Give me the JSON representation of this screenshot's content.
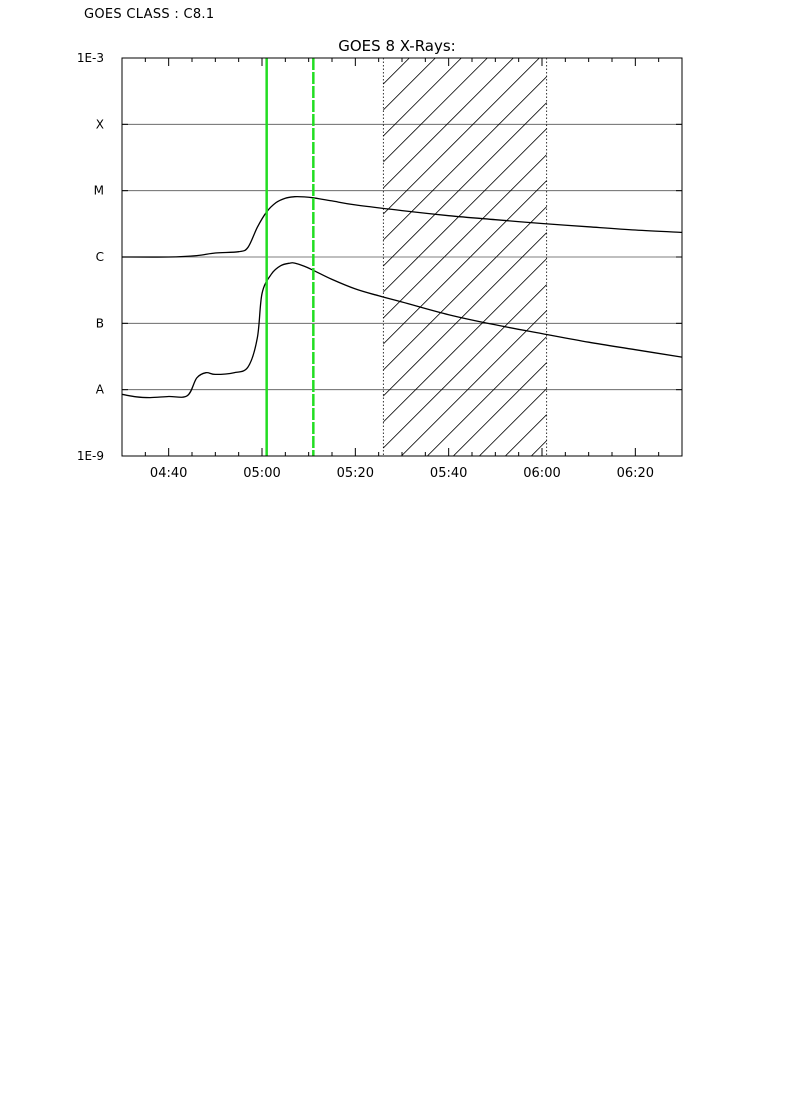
{
  "header": {
    "goes_class": "GOES CLASS : C8.1"
  },
  "chart_data": {
    "type": "line",
    "title": "GOES 8 X-Rays:",
    "xlabel": "",
    "ylabel": "",
    "y_scale": "log",
    "ylim": [
      "1E-9",
      "1E-3"
    ],
    "y_tick_labels": [
      "1E-3",
      "X",
      "M",
      "C",
      "B",
      "A",
      "1E-9"
    ],
    "x_tick_labels": [
      "04:40",
      "05:00",
      "05:20",
      "05:40",
      "06:00",
      "06:20"
    ],
    "xlim": [
      "04:30",
      "06:30"
    ],
    "grid": "horizontal at each decade",
    "markers": [
      {
        "time": "05:01",
        "style": "solid",
        "color": "#22dd22"
      },
      {
        "time": "05:11",
        "style": "dashed",
        "color": "#22dd22"
      }
    ],
    "shaded_interval": {
      "start": "05:26",
      "end": "06:01",
      "pattern": "diagonal hatch"
    },
    "series": [
      {
        "x": [
          "04:30",
          "04:40",
          "04:46",
          "04:50",
          "04:55",
          "04:57",
          "04:59",
          "05:01",
          "05:03",
          "05:05",
          "05:07",
          "05:09",
          "05:11",
          "05:15",
          "05:20",
          "05:30",
          "05:40",
          "05:50",
          "06:00",
          "06:10",
          "06:20",
          "06:30"
        ],
        "values": [
          1e-06,
          1e-06,
          1.05e-06,
          1.15e-06,
          1.2e-06,
          1.4e-06,
          2.8e-06,
          4.8e-06,
          6.6e-06,
          7.7e-06,
          8.1e-06,
          8.05e-06,
          7.8e-06,
          7e-06,
          6.1e-06,
          5e-06,
          4.2e-06,
          3.65e-06,
          3.2e-06,
          2.85e-06,
          2.55e-06,
          2.35e-06
        ]
      },
      {
        "x": [
          "04:30",
          "04:33",
          "04:36",
          "04:40",
          "04:44",
          "04:46",
          "04:48",
          "04:50",
          "04:54",
          "04:57",
          "04:59",
          "05:00",
          "05:02",
          "05:04",
          "05:06",
          "05:07",
          "05:09",
          "05:11",
          "05:15",
          "05:20",
          "05:25",
          "05:30",
          "05:40",
          "05:50",
          "06:00",
          "06:10",
          "06:20",
          "06:30"
        ],
        "values": [
          8.5e-09,
          7.8e-09,
          7.6e-09,
          7.9e-09,
          8.1e-09,
          1.5e-08,
          1.8e-08,
          1.7e-08,
          1.8e-08,
          2.2e-08,
          6e-08,
          2.8e-07,
          5.5e-07,
          7.4e-07,
          8.1e-07,
          8.1e-07,
          7.3e-07,
          6.3e-07,
          4.6e-07,
          3.3e-07,
          2.6e-07,
          2.1e-07,
          1.35e-07,
          9.5e-08,
          7e-08,
          5.2e-08,
          4e-08,
          3.1e-08
        ]
      }
    ]
  }
}
